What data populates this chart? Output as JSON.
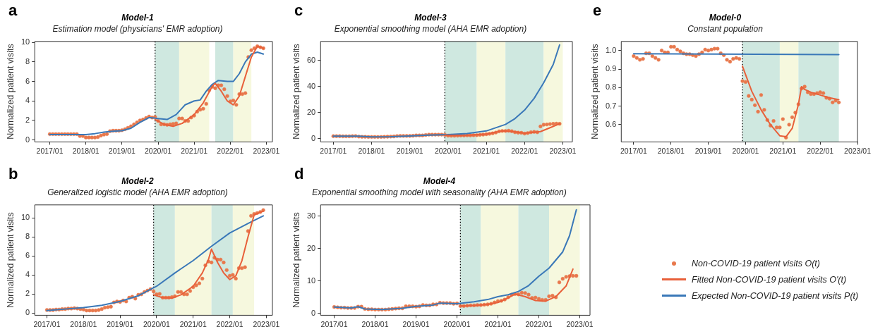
{
  "chart_data": [
    {
      "type": "line",
      "title": "Model-1",
      "subtitle": "Estimation model (physicians' EMR adoption)",
      "ylabel": "Normalized patient visits",
      "annotations": [
        "a"
      ],
      "x": [
        "2017-01",
        "2017-02",
        "2017-03",
        "2017-04",
        "2017-05",
        "2017-06",
        "2017-07",
        "2017-08",
        "2017-09",
        "2017-10",
        "2017-11",
        "2017-12",
        "2018-01",
        "2018-02",
        "2018-03",
        "2018-04",
        "2018-05",
        "2018-06",
        "2018-07",
        "2018-08",
        "2018-09",
        "2018-10",
        "2018-11",
        "2018-12",
        "2019-01",
        "2019-02",
        "2019-03",
        "2019-04",
        "2019-05",
        "2019-06",
        "2019-07",
        "2019-08",
        "2019-09",
        "2019-10",
        "2019-11",
        "2019-12",
        "2020-01",
        "2020-02",
        "2020-03",
        "2020-04",
        "2020-05",
        "2020-06",
        "2020-07",
        "2020-08",
        "2020-09",
        "2020-10",
        "2020-11",
        "2020-12",
        "2021-01",
        "2021-02",
        "2021-03",
        "2021-04",
        "2021-05",
        "2021-06",
        "2021-07",
        "2021-08",
        "2021-09",
        "2021-10",
        "2021-11",
        "2021-12",
        "2022-01",
        "2022-02",
        "2022-03",
        "2022-04",
        "2022-05",
        "2022-06",
        "2022-07",
        "2022-08",
        "2022-09",
        "2022-10",
        "2022-11",
        "2022-12"
      ],
      "series": [
        {
          "type": "scatter",
          "marker": "circle",
          "color": "#e8784c",
          "values": [
            0.6,
            0.6,
            0.6,
            0.6,
            0.6,
            0.6,
            0.6,
            0.6,
            0.6,
            0.6,
            0.4,
            0.4,
            0.25,
            0.25,
            0.25,
            0.25,
            0.3,
            0.45,
            0.55,
            0.6,
            0.9,
            0.95,
            0.95,
            0.95,
            1.0,
            1.1,
            1.25,
            1.4,
            1.6,
            1.8,
            2.0,
            2.1,
            2.25,
            2.4,
            2.3,
            2.35,
            1.95,
            1.6,
            1.6,
            1.55,
            1.6,
            1.65,
            1.7,
            2.2,
            2.2,
            1.95,
            1.95,
            2.3,
            2.5,
            2.9,
            3.1,
            3.2,
            3.7,
            5.1,
            5.45,
            5.3,
            5.6,
            5.6,
            5.2,
            4.5,
            3.95,
            4.05,
            3.6,
            4.7,
            4.7,
            4.8,
            8.5,
            9.2,
            9.4,
            9.6,
            9.5,
            9.4
          ]
        },
        {
          "marker": "none",
          "color": "#e8603a",
          "x": [
            "2019-12",
            "2020-03",
            "2020-06",
            "2020-09",
            "2021-01",
            "2021-04",
            "2021-07",
            "2021-08",
            "2021-10",
            "2021-12",
            "2022-02",
            "2022-04",
            "2022-06",
            "2022-08",
            "2022-10",
            "2022-12"
          ],
          "values": [
            2.1,
            1.6,
            1.4,
            1.7,
            2.6,
            3.8,
            5.5,
            5.8,
            5.0,
            4.0,
            3.6,
            4.5,
            6.5,
            8.5,
            9.6,
            9.4
          ]
        },
        {
          "marker": "none",
          "color": "#3a78b8",
          "x": [
            "2017-01",
            "2017-06",
            "2018-01",
            "2018-04",
            "2018-07",
            "2018-10",
            "2019-01",
            "2019-04",
            "2019-07",
            "2019-10",
            "2020-01",
            "2020-04",
            "2020-07",
            "2020-10",
            "2021-01",
            "2021-03",
            "2021-05",
            "2021-07",
            "2021-09",
            "2021-12",
            "2022-02",
            "2022-04",
            "2022-06",
            "2022-08",
            "2022-10",
            "2022-12"
          ],
          "values": [
            0.55,
            0.55,
            0.55,
            0.65,
            0.8,
            0.9,
            0.95,
            1.2,
            1.8,
            2.3,
            2.2,
            2.1,
            2.6,
            3.6,
            4.0,
            4.1,
            5.0,
            5.7,
            6.1,
            6.0,
            6.0,
            6.8,
            8.0,
            8.8,
            9.0,
            8.8
          ]
        }
      ],
      "xlim": [
        "2016-08",
        "2023-03"
      ],
      "ylim": [
        -0.2,
        10.1
      ],
      "xticks": [
        {
          "value": "2017-01",
          "label": "2017/01"
        },
        {
          "value": "2018-01",
          "label": "2018/01"
        },
        {
          "value": "2019-01",
          "label": "2019/01"
        },
        {
          "value": "2020-01",
          "label": "2020/01"
        },
        {
          "value": "2021-01",
          "label": "2021/01"
        },
        {
          "value": "2022-01",
          "label": "2022/01"
        },
        {
          "value": "2023-01",
          "label": "2023/01"
        }
      ],
      "yticks": [
        0,
        2,
        4,
        6,
        8,
        10
      ],
      "bands": [
        {
          "axis": "x",
          "from": "2019-12",
          "to": "2020-08",
          "color": "#cfe8e0"
        },
        {
          "axis": "x",
          "from": "2020-08",
          "to": "2021-06",
          "color": "#f6f8de"
        },
        {
          "axis": "x",
          "from": "2021-08",
          "to": "2022-02",
          "color": "#cfe8e0"
        },
        {
          "axis": "x",
          "from": "2022-02",
          "to": "2022-08",
          "color": "#f6f8de"
        }
      ],
      "ref_lines": [
        {
          "axis": "x",
          "value": "2019-12",
          "line_style": "dotted",
          "color": "#000000"
        }
      ]
    },
    {
      "type": "line",
      "title": "Model-3",
      "subtitle": "Exponential smoothing model (AHA EMR adoption)",
      "ylabel": "Normalized patient visits",
      "annotations": [
        "c"
      ],
      "x": [
        "2017-01",
        "2017-02",
        "2017-03",
        "2017-04",
        "2017-05",
        "2017-06",
        "2017-07",
        "2017-08",
        "2017-09",
        "2017-10",
        "2017-11",
        "2017-12",
        "2018-01",
        "2018-02",
        "2018-03",
        "2018-04",
        "2018-05",
        "2018-06",
        "2018-07",
        "2018-08",
        "2018-09",
        "2018-10",
        "2018-11",
        "2018-12",
        "2019-01",
        "2019-02",
        "2019-03",
        "2019-04",
        "2019-05",
        "2019-06",
        "2019-07",
        "2019-08",
        "2019-09",
        "2019-10",
        "2019-11",
        "2019-12",
        "2020-01",
        "2020-02",
        "2020-03",
        "2020-04",
        "2020-05",
        "2020-06",
        "2020-07",
        "2020-08",
        "2020-09",
        "2020-10",
        "2020-11",
        "2020-12",
        "2021-01",
        "2021-02",
        "2021-03",
        "2021-04",
        "2021-05",
        "2021-06",
        "2021-07",
        "2021-08",
        "2021-09",
        "2021-10",
        "2021-11",
        "2021-12",
        "2022-01",
        "2022-02",
        "2022-03",
        "2022-04",
        "2022-05",
        "2022-06",
        "2022-07",
        "2022-08",
        "2022-09",
        "2022-10",
        "2022-11",
        "2022-12"
      ],
      "series": [
        {
          "type": "scatter",
          "marker": "circle",
          "color": "#e8784c",
          "values": [
            2,
            2,
            2,
            1.9,
            1.9,
            1.9,
            2,
            2.1,
            1.7,
            1.5,
            1.5,
            1.4,
            1.4,
            1.4,
            1.4,
            1.4,
            1.5,
            1.6,
            1.7,
            1.8,
            2.1,
            2.2,
            2.2,
            2.2,
            2.2,
            2.3,
            2.6,
            2.6,
            2.6,
            2.9,
            3.2,
            3.2,
            3.2,
            3.2,
            3.2,
            3.0,
            2.4,
            2.3,
            2.3,
            2.4,
            2.5,
            2.5,
            2.6,
            2.6,
            2.7,
            2.8,
            3.0,
            3.2,
            3.5,
            3.8,
            4.2,
            4.8,
            5.7,
            6.0,
            6.0,
            6.2,
            5.8,
            5.0,
            4.7,
            4.6,
            4.0,
            4.4,
            5.0,
            5.3,
            5.0,
            9.5,
            10.8,
            11.0,
            11.3,
            11.5,
            11.6,
            11.5
          ]
        },
        {
          "marker": "none",
          "color": "#e8603a",
          "x": [
            "2019-12",
            "2020-06",
            "2021-01",
            "2021-06",
            "2021-09",
            "2022-01",
            "2022-06",
            "2022-09",
            "2022-12"
          ],
          "values": [
            2.6,
            2.6,
            3.6,
            6.0,
            5.6,
            4.3,
            5.5,
            8.5,
            11.5
          ]
        },
        {
          "marker": "none",
          "color": "#3a78b8",
          "x": [
            "2017-01",
            "2017-09",
            "2018-01",
            "2018-07",
            "2019-01",
            "2019-07",
            "2020-01",
            "2020-07",
            "2021-01",
            "2021-07",
            "2021-10",
            "2022-01",
            "2022-04",
            "2022-07",
            "2022-10",
            "2022-12"
          ],
          "values": [
            2.0,
            2.0,
            1.5,
            1.6,
            2.2,
            2.8,
            3.2,
            4.0,
            6.0,
            11.0,
            15.5,
            22.0,
            31.0,
            43.0,
            57.0,
            72.0
          ]
        }
      ],
      "xlim": [
        "2016-09",
        "2023-04"
      ],
      "ylim": [
        -2.4,
        74.7
      ],
      "xticks": [
        {
          "value": "2017-01",
          "label": "2017/01"
        },
        {
          "value": "2018-01",
          "label": "2018/01"
        },
        {
          "value": "2019-01",
          "label": "2019/01"
        },
        {
          "value": "2020-01",
          "label": "2020/01"
        },
        {
          "value": "2021-01",
          "label": "2021/01"
        },
        {
          "value": "2022-01",
          "label": "2022/01"
        },
        {
          "value": "2023-01",
          "label": "2023/01"
        }
      ],
      "yticks": [
        0,
        20,
        40,
        60
      ],
      "bands": [
        {
          "axis": "x",
          "from": "2019-12",
          "to": "2020-10",
          "color": "#cfe8e0"
        },
        {
          "axis": "x",
          "from": "2020-10",
          "to": "2021-07",
          "color": "#f6f8de"
        },
        {
          "axis": "x",
          "from": "2021-07",
          "to": "2022-07",
          "color": "#cfe8e0"
        },
        {
          "axis": "x",
          "from": "2022-07",
          "to": "2023-01",
          "color": "#f6f8de"
        }
      ],
      "ref_lines": [
        {
          "axis": "x",
          "value": "2019-12",
          "line_style": "dotted",
          "color": "#000000"
        }
      ]
    },
    {
      "type": "line",
      "title": "Model-0",
      "subtitle": "Constant population",
      "ylabel": "Normalized patient visits",
      "annotations": [
        "e"
      ],
      "legend": "bottom",
      "x": [
        "2017-01",
        "2017-02",
        "2017-03",
        "2017-04",
        "2017-05",
        "2017-06",
        "2017-07",
        "2017-08",
        "2017-09",
        "2017-10",
        "2017-11",
        "2017-12",
        "2018-01",
        "2018-02",
        "2018-03",
        "2018-04",
        "2018-05",
        "2018-06",
        "2018-07",
        "2018-08",
        "2018-09",
        "2018-10",
        "2018-11",
        "2018-12",
        "2019-01",
        "2019-02",
        "2019-03",
        "2019-04",
        "2019-05",
        "2019-06",
        "2019-07",
        "2019-08",
        "2019-09",
        "2019-10",
        "2019-11",
        "2019-12",
        "2020-01",
        "2020-02",
        "2020-03",
        "2020-04",
        "2020-05",
        "2020-06",
        "2020-07",
        "2020-08",
        "2020-09",
        "2020-10",
        "2020-11",
        "2020-12",
        "2021-01",
        "2021-02",
        "2021-03",
        "2021-04",
        "2021-05",
        "2021-06",
        "2021-07",
        "2021-08",
        "2021-09",
        "2021-10",
        "2021-11",
        "2021-12",
        "2022-01",
        "2022-02",
        "2022-03",
        "2022-04",
        "2022-05",
        "2022-06",
        "2022-07"
      ],
      "series": [
        {
          "name": "Non-COVID-19 patient visits O(t)",
          "type": "scatter",
          "marker": "circle",
          "color": "#e8784c",
          "values": [
            0.97,
            0.96,
            0.95,
            0.955,
            0.985,
            0.985,
            0.97,
            0.96,
            0.95,
            1.0,
            0.99,
            0.99,
            1.02,
            1.02,
            1.005,
            0.995,
            0.985,
            0.98,
            0.98,
            0.975,
            0.97,
            0.98,
            0.99,
            1.005,
            1.0,
            1.005,
            1.01,
            1.01,
            0.985,
            0.975,
            0.95,
            0.94,
            0.955,
            0.96,
            0.955,
            0.835,
            0.83,
            0.755,
            0.735,
            0.705,
            0.67,
            0.76,
            0.68,
            0.625,
            0.595,
            0.62,
            0.585,
            0.585,
            0.63,
            0.53,
            0.6,
            0.64,
            0.665,
            0.71,
            0.795,
            0.805,
            0.775,
            0.765,
            0.765,
            0.77,
            0.775,
            0.77,
            0.745,
            0.74,
            0.72,
            0.73,
            0.72
          ]
        },
        {
          "name": "Fitted Non-COVID-19 patient visits O'(t)",
          "marker": "none",
          "color": "#e8603a",
          "x": [
            "2019-12",
            "2020-03",
            "2020-06",
            "2020-09",
            "2020-12",
            "2021-02",
            "2021-04",
            "2021-06",
            "2021-07",
            "2021-08",
            "2021-10",
            "2022-01",
            "2022-04",
            "2022-07"
          ],
          "values": [
            0.915,
            0.78,
            0.68,
            0.6,
            0.54,
            0.535,
            0.58,
            0.71,
            0.805,
            0.79,
            0.775,
            0.76,
            0.745,
            0.735
          ]
        },
        {
          "name": "Expected Non-COVID-19 patient visits  P(t)",
          "marker": "none",
          "color": "#3a78b8",
          "x": [
            "2017-01",
            "2022-07"
          ],
          "values": [
            0.983,
            0.978
          ]
        }
      ],
      "xlim": [
        "2016-09",
        "2023-01"
      ],
      "ylim": [
        0.507,
        1.049
      ],
      "xticks": [
        {
          "value": "2017-01",
          "label": "2017/01"
        },
        {
          "value": "2018-01",
          "label": "2018/01"
        },
        {
          "value": "2019-01",
          "label": "2019/01"
        },
        {
          "value": "2020-01",
          "label": "2020/01"
        },
        {
          "value": "2021-01",
          "label": "2021/01"
        },
        {
          "value": "2022-01",
          "label": "2022/01"
        },
        {
          "value": "2023-01",
          "label": "2023/01"
        }
      ],
      "yticks": [
        0.6,
        0.7,
        0.8,
        0.9,
        {
          "value": 1,
          "label": "1.0"
        }
      ],
      "bands": [
        {
          "axis": "x",
          "from": "2019-12",
          "to": "2020-12",
          "color": "#cfe8e0"
        },
        {
          "axis": "x",
          "from": "2020-12",
          "to": "2021-06",
          "color": "#f6f8de"
        },
        {
          "axis": "x",
          "from": "2021-06",
          "to": "2022-07",
          "color": "#cfe8e0"
        }
      ],
      "ref_lines": [
        {
          "axis": "x",
          "value": "2019-12",
          "line_style": "dotted",
          "color": "#000000"
        }
      ]
    },
    {
      "type": "line",
      "title": "Model-2",
      "subtitle": "Generalized logistic model (AHA EMR adoption)",
      "ylabel": "Normalized patient visits",
      "annotations": [
        "b"
      ],
      "x": [
        "2017-01",
        "2017-02",
        "2017-03",
        "2017-04",
        "2017-05",
        "2017-06",
        "2017-07",
        "2017-08",
        "2017-09",
        "2017-10",
        "2017-11",
        "2017-12",
        "2018-01",
        "2018-02",
        "2018-03",
        "2018-04",
        "2018-05",
        "2018-06",
        "2018-07",
        "2018-08",
        "2018-09",
        "2018-10",
        "2018-11",
        "2018-12",
        "2019-01",
        "2019-02",
        "2019-03",
        "2019-04",
        "2019-05",
        "2019-06",
        "2019-07",
        "2019-08",
        "2019-09",
        "2019-10",
        "2019-11",
        "2019-12",
        "2020-01",
        "2020-02",
        "2020-03",
        "2020-04",
        "2020-05",
        "2020-06",
        "2020-07",
        "2020-08",
        "2020-09",
        "2020-10",
        "2020-11",
        "2020-12",
        "2021-01",
        "2021-02",
        "2021-03",
        "2021-04",
        "2021-05",
        "2021-06",
        "2021-07",
        "2021-08",
        "2021-09",
        "2021-10",
        "2021-11",
        "2021-12",
        "2022-01",
        "2022-02",
        "2022-03",
        "2022-04",
        "2022-05",
        "2022-06",
        "2022-07",
        "2022-08",
        "2022-09",
        "2022-10",
        "2022-11",
        "2022-12"
      ],
      "series": [
        {
          "type": "scatter",
          "marker": "circle",
          "color": "#e8784c",
          "values": [
            0.3,
            0.3,
            0.3,
            0.35,
            0.35,
            0.4,
            0.4,
            0.45,
            0.45,
            0.5,
            0.45,
            0.4,
            0.35,
            0.25,
            0.25,
            0.25,
            0.25,
            0.3,
            0.4,
            0.55,
            0.6,
            0.65,
            1.1,
            1.2,
            1.15,
            1.3,
            1.2,
            1.6,
            1.7,
            1.5,
            1.9,
            1.95,
            2.2,
            2.35,
            2.5,
            2.25,
            1.95,
            2.0,
            1.6,
            1.6,
            1.6,
            1.65,
            1.75,
            2.2,
            2.2,
            1.95,
            1.95,
            2.3,
            2.7,
            2.9,
            3.1,
            3.6,
            5.0,
            5.4,
            5.3,
            5.8,
            5.6,
            5.6,
            5.3,
            4.5,
            3.9,
            4.0,
            3.6,
            4.7,
            4.7,
            4.8,
            8.6,
            10.2,
            10.4,
            10.5,
            10.6,
            10.8
          ]
        },
        {
          "marker": "none",
          "color": "#e8603a",
          "x": [
            "2019-12",
            "2020-03",
            "2020-06",
            "2020-09",
            "2021-01",
            "2021-04",
            "2021-06",
            "2021-07",
            "2021-09",
            "2021-11",
            "2022-01",
            "2022-03",
            "2022-05",
            "2022-07",
            "2022-09",
            "2022-12"
          ],
          "values": [
            1.9,
            1.6,
            1.55,
            1.9,
            2.8,
            4.2,
            5.6,
            6.7,
            5.3,
            4.2,
            3.5,
            3.9,
            5.5,
            8.0,
            10.3,
            10.7
          ]
        },
        {
          "marker": "none",
          "color": "#3a78b8",
          "x": [
            "2017-01",
            "2017-07",
            "2018-01",
            "2018-07",
            "2019-01",
            "2019-07",
            "2020-01",
            "2020-07",
            "2021-01",
            "2021-07",
            "2022-01",
            "2022-07",
            "2022-12"
          ],
          "values": [
            0.25,
            0.4,
            0.55,
            0.8,
            1.2,
            1.8,
            2.8,
            4.2,
            5.5,
            7.0,
            8.4,
            9.4,
            10.2
          ]
        }
      ],
      "xlim": [
        "2016-09",
        "2023-03"
      ],
      "ylim": [
        -0.25,
        11.35
      ],
      "xticks": [
        {
          "value": "2017-01",
          "label": "2017/01"
        },
        {
          "value": "2018-01",
          "label": "2018/01"
        },
        {
          "value": "2019-01",
          "label": "2019/01"
        },
        {
          "value": "2020-01",
          "label": "2020/01"
        },
        {
          "value": "2021-01",
          "label": "2021/01"
        },
        {
          "value": "2022-01",
          "label": "2022/01"
        },
        {
          "value": "2023-01",
          "label": "2023/01"
        }
      ],
      "yticks": [
        0,
        2,
        4,
        6,
        8,
        10
      ],
      "bands": [
        {
          "axis": "x",
          "from": "2019-12",
          "to": "2020-07",
          "color": "#cfe8e0"
        },
        {
          "axis": "x",
          "from": "2020-07",
          "to": "2021-07",
          "color": "#f6f8de"
        },
        {
          "axis": "x",
          "from": "2021-07",
          "to": "2022-02",
          "color": "#cfe8e0"
        },
        {
          "axis": "x",
          "from": "2022-02",
          "to": "2022-09",
          "color": "#f6f8de"
        }
      ],
      "ref_lines": [
        {
          "axis": "x",
          "value": "2019-12",
          "line_style": "dotted",
          "color": "#000000"
        }
      ]
    },
    {
      "type": "line",
      "title": "Model-4",
      "subtitle": "Exponential smoothing model with seasonality (AHA EMR adoption)",
      "ylabel": "Normalized patient visits",
      "annotations": [
        "d"
      ],
      "x": [
        "2017-01",
        "2017-02",
        "2017-03",
        "2017-04",
        "2017-05",
        "2017-06",
        "2017-07",
        "2017-08",
        "2017-09",
        "2017-10",
        "2017-11",
        "2017-12",
        "2018-01",
        "2018-02",
        "2018-03",
        "2018-04",
        "2018-05",
        "2018-06",
        "2018-07",
        "2018-08",
        "2018-09",
        "2018-10",
        "2018-11",
        "2018-12",
        "2019-01",
        "2019-02",
        "2019-03",
        "2019-04",
        "2019-05",
        "2019-06",
        "2019-07",
        "2019-08",
        "2019-09",
        "2019-10",
        "2019-11",
        "2019-12",
        "2020-01",
        "2020-02",
        "2020-03",
        "2020-04",
        "2020-05",
        "2020-06",
        "2020-07",
        "2020-08",
        "2020-09",
        "2020-10",
        "2020-11",
        "2020-12",
        "2021-01",
        "2021-02",
        "2021-03",
        "2021-04",
        "2021-05",
        "2021-06",
        "2021-07",
        "2021-08",
        "2021-09",
        "2021-10",
        "2021-11",
        "2021-12",
        "2022-01",
        "2022-02",
        "2022-03",
        "2022-04",
        "2022-05",
        "2022-06",
        "2022-07",
        "2022-08",
        "2022-09",
        "2022-10",
        "2022-11",
        "2022-12"
      ],
      "series": [
        {
          "type": "scatter",
          "marker": "circle",
          "color": "#e8784c",
          "values": [
            2,
            1.9,
            1.8,
            1.8,
            1.7,
            1.7,
            1.7,
            2.1,
            2.1,
            1.4,
            1.3,
            1.3,
            1.2,
            1.2,
            1.2,
            1.2,
            1.3,
            1.4,
            1.5,
            1.6,
            1.6,
            2.2,
            2.2,
            2.2,
            2.1,
            2.2,
            2.6,
            2.5,
            2.5,
            2.8,
            2.8,
            3.3,
            3.2,
            3.2,
            3.2,
            3.0,
            3.1,
            2.3,
            2.3,
            2.4,
            2.5,
            2.5,
            2.6,
            2.6,
            2.7,
            2.8,
            3.0,
            3.4,
            3.8,
            3.9,
            4.3,
            5.0,
            5.8,
            6.0,
            5.9,
            6.4,
            6.3,
            5.8,
            4.8,
            4.9,
            4.5,
            4.2,
            4.2,
            5.3,
            5.5,
            5.0,
            9.6,
            10.7,
            11.3,
            11.5,
            11.6,
            11.6
          ]
        },
        {
          "marker": "none",
          "color": "#e8603a",
          "x": [
            "2020-02",
            "2020-06",
            "2020-10",
            "2021-01",
            "2021-04",
            "2021-06",
            "2021-09",
            "2021-12",
            "2022-03",
            "2022-06",
            "2022-09",
            "2022-11"
          ],
          "values": [
            2.3,
            2.4,
            2.8,
            3.4,
            4.8,
            6.0,
            5.2,
            4.0,
            3.8,
            5.2,
            8.5,
            13.7
          ]
        },
        {
          "marker": "none",
          "color": "#3a78b8",
          "x": [
            "2017-01",
            "2017-06",
            "2017-08",
            "2017-10",
            "2018-03",
            "2018-09",
            "2019-01",
            "2019-06",
            "2019-08",
            "2020-01",
            "2020-06",
            "2020-10",
            "2021-01",
            "2021-04",
            "2021-07",
            "2021-10",
            "2022-01",
            "2022-04",
            "2022-06",
            "2022-08",
            "2022-10",
            "2022-12"
          ],
          "values": [
            2.0,
            1.7,
            2.1,
            1.4,
            1.2,
            1.6,
            2.2,
            2.6,
            3.2,
            3.0,
            3.6,
            4.3,
            5.2,
            5.8,
            6.8,
            8.6,
            11.5,
            14.0,
            16.5,
            19.0,
            24.0,
            32.0
          ]
        }
      ],
      "xlim": [
        "2016-09",
        "2023-04"
      ],
      "ylim": [
        -0.55,
        33.5
      ],
      "xticks": [
        {
          "value": "2017-01",
          "label": "2017/01"
        },
        {
          "value": "2018-01",
          "label": "2018/01"
        },
        {
          "value": "2019-01",
          "label": "2019/01"
        },
        {
          "value": "2020-01",
          "label": "2020/01"
        },
        {
          "value": "2021-01",
          "label": "2021/01"
        },
        {
          "value": "2022-01",
          "label": "2022/01"
        },
        {
          "value": "2023-01",
          "label": "2023/01"
        }
      ],
      "yticks": [
        0,
        10,
        20,
        30
      ],
      "bands": [
        {
          "axis": "x",
          "from": "2020-02",
          "to": "2020-08",
          "color": "#cfe8e0"
        },
        {
          "axis": "x",
          "from": "2020-08",
          "to": "2021-07",
          "color": "#f6f8de"
        },
        {
          "axis": "x",
          "from": "2021-07",
          "to": "2022-04",
          "color": "#cfe8e0"
        },
        {
          "axis": "x",
          "from": "2022-04",
          "to": "2023-01",
          "color": "#f6f8de"
        }
      ],
      "ref_lines": [
        {
          "axis": "x",
          "value": "2020-02",
          "line_style": "dotted",
          "color": "#000000"
        }
      ]
    }
  ]
}
